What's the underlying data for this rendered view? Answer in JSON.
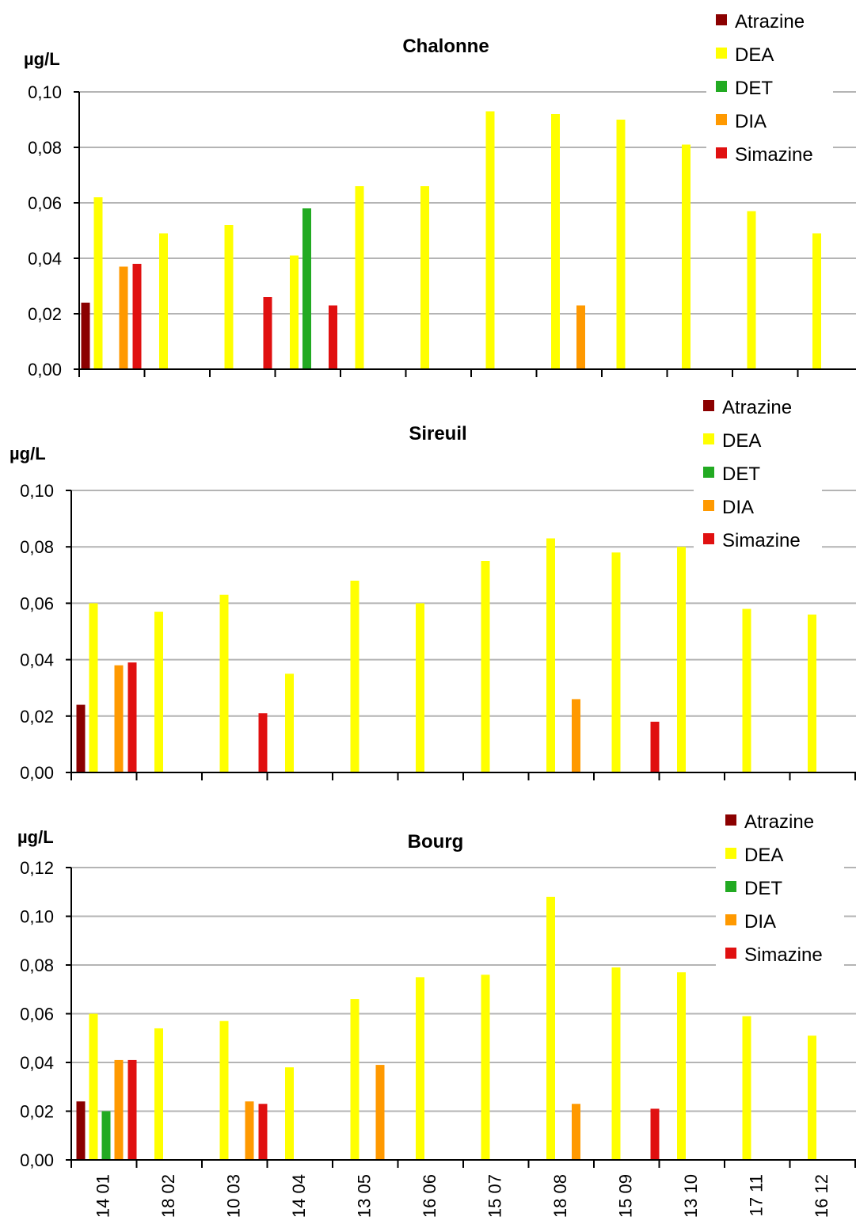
{
  "legend": [
    "Atrazine",
    "DEA",
    "DET",
    "DIA",
    "Simazine"
  ],
  "colors": {
    "Atrazine": "#8b0000",
    "DEA": "#ffff00",
    "DET": "#22aa22",
    "DIA": "#ff9900",
    "Simazine": "#e01010"
  },
  "chart_data": [
    {
      "type": "bar",
      "title": "Chalonne",
      "ylabel": "µg/L",
      "ylim": [
        0,
        0.1
      ],
      "yticks": [
        "0,00",
        "0,02",
        "0,04",
        "0,06",
        "0,08",
        "0,10"
      ],
      "categories": [
        "14 01",
        "18 02",
        "10 03",
        "14 04",
        "13 05",
        "16 06",
        "15 07",
        "18 08",
        "15 09",
        "13 10",
        "17 11",
        "16 12"
      ],
      "series": [
        {
          "name": "Atrazine",
          "values": [
            0.024,
            null,
            null,
            null,
            null,
            null,
            null,
            null,
            null,
            null,
            null,
            null
          ]
        },
        {
          "name": "DEA",
          "values": [
            0.062,
            0.049,
            0.052,
            0.041,
            0.066,
            0.066,
            0.093,
            0.092,
            0.09,
            0.081,
            0.057,
            0.049
          ]
        },
        {
          "name": "DET",
          "values": [
            null,
            null,
            null,
            0.058,
            null,
            null,
            null,
            null,
            null,
            null,
            null,
            null
          ]
        },
        {
          "name": "DIA",
          "values": [
            0.037,
            null,
            null,
            null,
            null,
            null,
            null,
            0.023,
            null,
            null,
            null,
            null
          ]
        },
        {
          "name": "Simazine",
          "values": [
            0.038,
            null,
            0.026,
            0.023,
            null,
            null,
            null,
            null,
            null,
            null,
            null,
            null
          ]
        }
      ]
    },
    {
      "type": "bar",
      "title": "Sireuil",
      "ylabel": "µg/L",
      "ylim": [
        0,
        0.1
      ],
      "yticks": [
        "0,00",
        "0,02",
        "0,04",
        "0,06",
        "0,08",
        "0,10"
      ],
      "categories": [
        "14 01",
        "18 02",
        "10 03",
        "14 04",
        "13 05",
        "16 06",
        "15 07",
        "18 08",
        "15 09",
        "13 10",
        "17 11",
        "16 12"
      ],
      "series": [
        {
          "name": "Atrazine",
          "values": [
            0.024,
            null,
            null,
            null,
            null,
            null,
            null,
            null,
            null,
            null,
            null,
            null
          ]
        },
        {
          "name": "DEA",
          "values": [
            0.06,
            0.057,
            0.063,
            0.035,
            0.068,
            0.06,
            0.075,
            0.083,
            0.078,
            0.08,
            0.058,
            0.056
          ]
        },
        {
          "name": "DET",
          "values": [
            null,
            null,
            null,
            null,
            null,
            null,
            null,
            null,
            null,
            null,
            null,
            null
          ]
        },
        {
          "name": "DIA",
          "values": [
            0.038,
            null,
            null,
            null,
            null,
            null,
            null,
            0.026,
            null,
            null,
            null,
            null
          ]
        },
        {
          "name": "Simazine",
          "values": [
            0.039,
            null,
            0.021,
            null,
            null,
            null,
            null,
            null,
            0.018,
            null,
            null,
            null
          ]
        }
      ]
    },
    {
      "type": "bar",
      "title": "Bourg",
      "ylabel": "µg/L",
      "ylim": [
        0,
        0.12
      ],
      "yticks": [
        "0,00",
        "0,02",
        "0,04",
        "0,06",
        "0,08",
        "0,10",
        "0,12"
      ],
      "categories": [
        "14 01",
        "18 02",
        "10 03",
        "14 04",
        "13 05",
        "16 06",
        "15 07",
        "18 08",
        "15 09",
        "13 10",
        "17 11",
        "16 12"
      ],
      "series": [
        {
          "name": "Atrazine",
          "values": [
            0.024,
            null,
            null,
            null,
            null,
            null,
            null,
            null,
            null,
            null,
            null,
            null
          ]
        },
        {
          "name": "DEA",
          "values": [
            0.06,
            0.054,
            0.057,
            0.038,
            0.066,
            0.075,
            0.076,
            0.108,
            0.079,
            0.077,
            0.059,
            0.051
          ]
        },
        {
          "name": "DET",
          "values": [
            0.02,
            null,
            null,
            null,
            null,
            null,
            null,
            null,
            null,
            null,
            null,
            null
          ]
        },
        {
          "name": "DIA",
          "values": [
            0.041,
            null,
            0.024,
            null,
            0.039,
            null,
            null,
            0.023,
            null,
            null,
            null,
            null
          ]
        },
        {
          "name": "Simazine",
          "values": [
            0.041,
            null,
            0.023,
            null,
            null,
            null,
            null,
            null,
            0.021,
            null,
            null,
            null
          ]
        }
      ]
    }
  ]
}
